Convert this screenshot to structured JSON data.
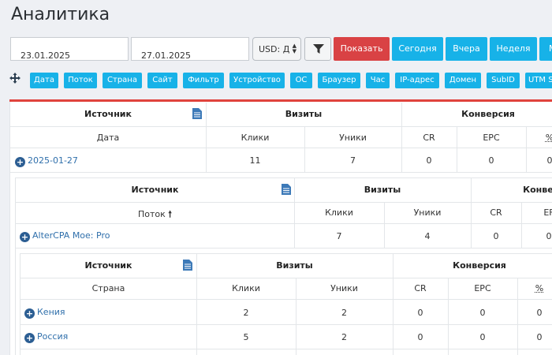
{
  "page_title": "Аналитика",
  "toolbar": {
    "date_from": "23.01.2025",
    "date_to": "27.01.2025",
    "currency": "USD: Д",
    "show_label": "Показать",
    "today_label": "Сегодня",
    "yesterday_label": "Вчера",
    "week_label": "Неделя",
    "month_label": "М"
  },
  "groupings": [
    "Дата",
    "Поток",
    "Страна",
    "Сайт",
    "Фильтр",
    "Устройство",
    "ОС",
    "Браузер",
    "Час",
    "IP-адрес",
    "Домен",
    "SubID",
    "UTM S"
  ],
  "headers": {
    "source": "Источник",
    "visits": "Визиты",
    "conversion": "Конверсия"
  },
  "table1": {
    "cols": {
      "group": "Дата",
      "clicks": "Клики",
      "uniques": "Уники",
      "cr": "CR",
      "epc": "EPC",
      "pct": "%"
    },
    "rows": [
      {
        "label": "2025-01-27",
        "clicks": "11",
        "uniques": "7",
        "cr": "0",
        "epc": "0",
        "pct": "0"
      }
    ]
  },
  "table2": {
    "cols": {
      "group": "Поток",
      "clicks": "Клики",
      "uniques": "Уники",
      "cr": "CR",
      "epc": "EF"
    },
    "rows": [
      {
        "label": "AlterCPA Мое: Pro",
        "clicks": "7",
        "uniques": "4",
        "cr": "0",
        "epc": "0"
      }
    ]
  },
  "table3": {
    "cols": {
      "group": "Страна",
      "clicks": "Клики",
      "uniques": "Уники",
      "cr": "CR",
      "epc": "EPC",
      "pct": "%"
    },
    "rows": [
      {
        "label": "Кения",
        "clicks": "2",
        "uniques": "2",
        "cr": "0",
        "epc": "0",
        "pct": "0"
      },
      {
        "label": "Россия",
        "clicks": "5",
        "uniques": "2",
        "cr": "0",
        "epc": "0",
        "pct": "0"
      }
    ]
  }
}
